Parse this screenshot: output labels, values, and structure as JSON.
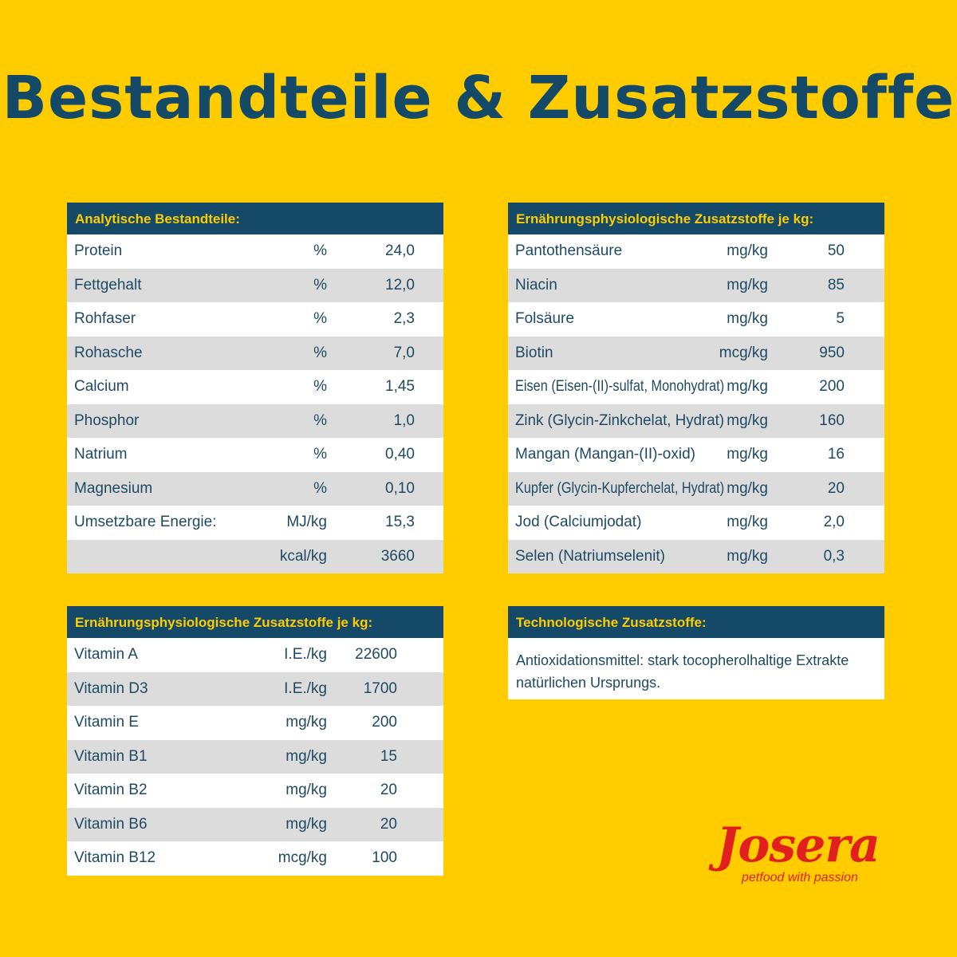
{
  "title": "Bestandteile & Zusatzstoffe",
  "colors": {
    "background": "#ffcc00",
    "header": "#144a68",
    "header_text": "#ffcc00",
    "stripe": "#dcdcdc",
    "brand": "#e1201d"
  },
  "analytic": {
    "header": "Analytische Bestandteile:",
    "rows": [
      {
        "name": "Protein",
        "unit": "%",
        "value": "24,0"
      },
      {
        "name": "Fettgehalt",
        "unit": "%",
        "value": "12,0"
      },
      {
        "name": "Rohfaser",
        "unit": "%",
        "value": "2,3"
      },
      {
        "name": "Rohasche",
        "unit": "%",
        "value": "7,0"
      },
      {
        "name": "Calcium",
        "unit": "%",
        "value": "1,45"
      },
      {
        "name": "Phosphor",
        "unit": "%",
        "value": "1,0"
      },
      {
        "name": "Natrium",
        "unit": "%",
        "value": "0,40"
      },
      {
        "name": "Magnesium",
        "unit": "%",
        "value": "0,10"
      },
      {
        "name": "Umsetzbare Energie:",
        "unit": "MJ/kg",
        "value": "15,3"
      },
      {
        "name": "",
        "unit": "kcal/kg",
        "value": "3660"
      }
    ]
  },
  "vitamins": {
    "header": "Ernährungsphysiologische Zusatzstoffe je kg:",
    "rows": [
      {
        "name": "Vitamin A",
        "unit": "I.E./kg",
        "value": "22600"
      },
      {
        "name": "Vitamin D3",
        "unit": "I.E./kg",
        "value": "1700"
      },
      {
        "name": "Vitamin E",
        "unit": "mg/kg",
        "value": "200"
      },
      {
        "name": "Vitamin B1",
        "unit": "mg/kg",
        "value": "15"
      },
      {
        "name": "Vitamin B2",
        "unit": "mg/kg",
        "value": "20"
      },
      {
        "name": "Vitamin B6",
        "unit": "mg/kg",
        "value": "20"
      },
      {
        "name": "Vitamin B12",
        "unit": "mcg/kg",
        "value": "100"
      }
    ]
  },
  "nutrition": {
    "header": "Ernährungsphysiologische Zusatzstoffe je kg:",
    "rows": [
      {
        "name": "Pantothensäure",
        "unit": "mg/kg",
        "value": "50"
      },
      {
        "name": "Niacin",
        "unit": "mg/kg",
        "value": "85"
      },
      {
        "name": "Folsäure",
        "unit": "mg/kg",
        "value": "5"
      },
      {
        "name": "Biotin",
        "unit": "mcg/kg",
        "value": "950"
      },
      {
        "name": "Eisen (Eisen-(II)-sulfat, Monohydrat)",
        "unit": "mg/kg",
        "value": "200"
      },
      {
        "name": "Zink (Glycin-Zinkchelat, Hydrat)",
        "unit": "mg/kg",
        "value": "160"
      },
      {
        "name": "Mangan (Mangan-(II)-oxid)",
        "unit": "mg/kg",
        "value": "16"
      },
      {
        "name": "Kupfer (Glycin-Kupferchelat, Hydrat)",
        "unit": "mg/kg",
        "value": "20"
      },
      {
        "name": "Jod (Calciumjodat)",
        "unit": "mg/kg",
        "value": "2,0"
      },
      {
        "name": "Selen (Natriumselenit)",
        "unit": "mg/kg",
        "value": "0,3"
      }
    ]
  },
  "technological": {
    "header": "Technologische Zusatzstoffe:",
    "text_line1": "Antioxidationsmittel: stark tocopherolhaltige Extrakte",
    "text_line2": "natürlichen Ursprungs."
  },
  "logo": {
    "wordmark": "Josera",
    "tagline": "petfood with passion"
  }
}
